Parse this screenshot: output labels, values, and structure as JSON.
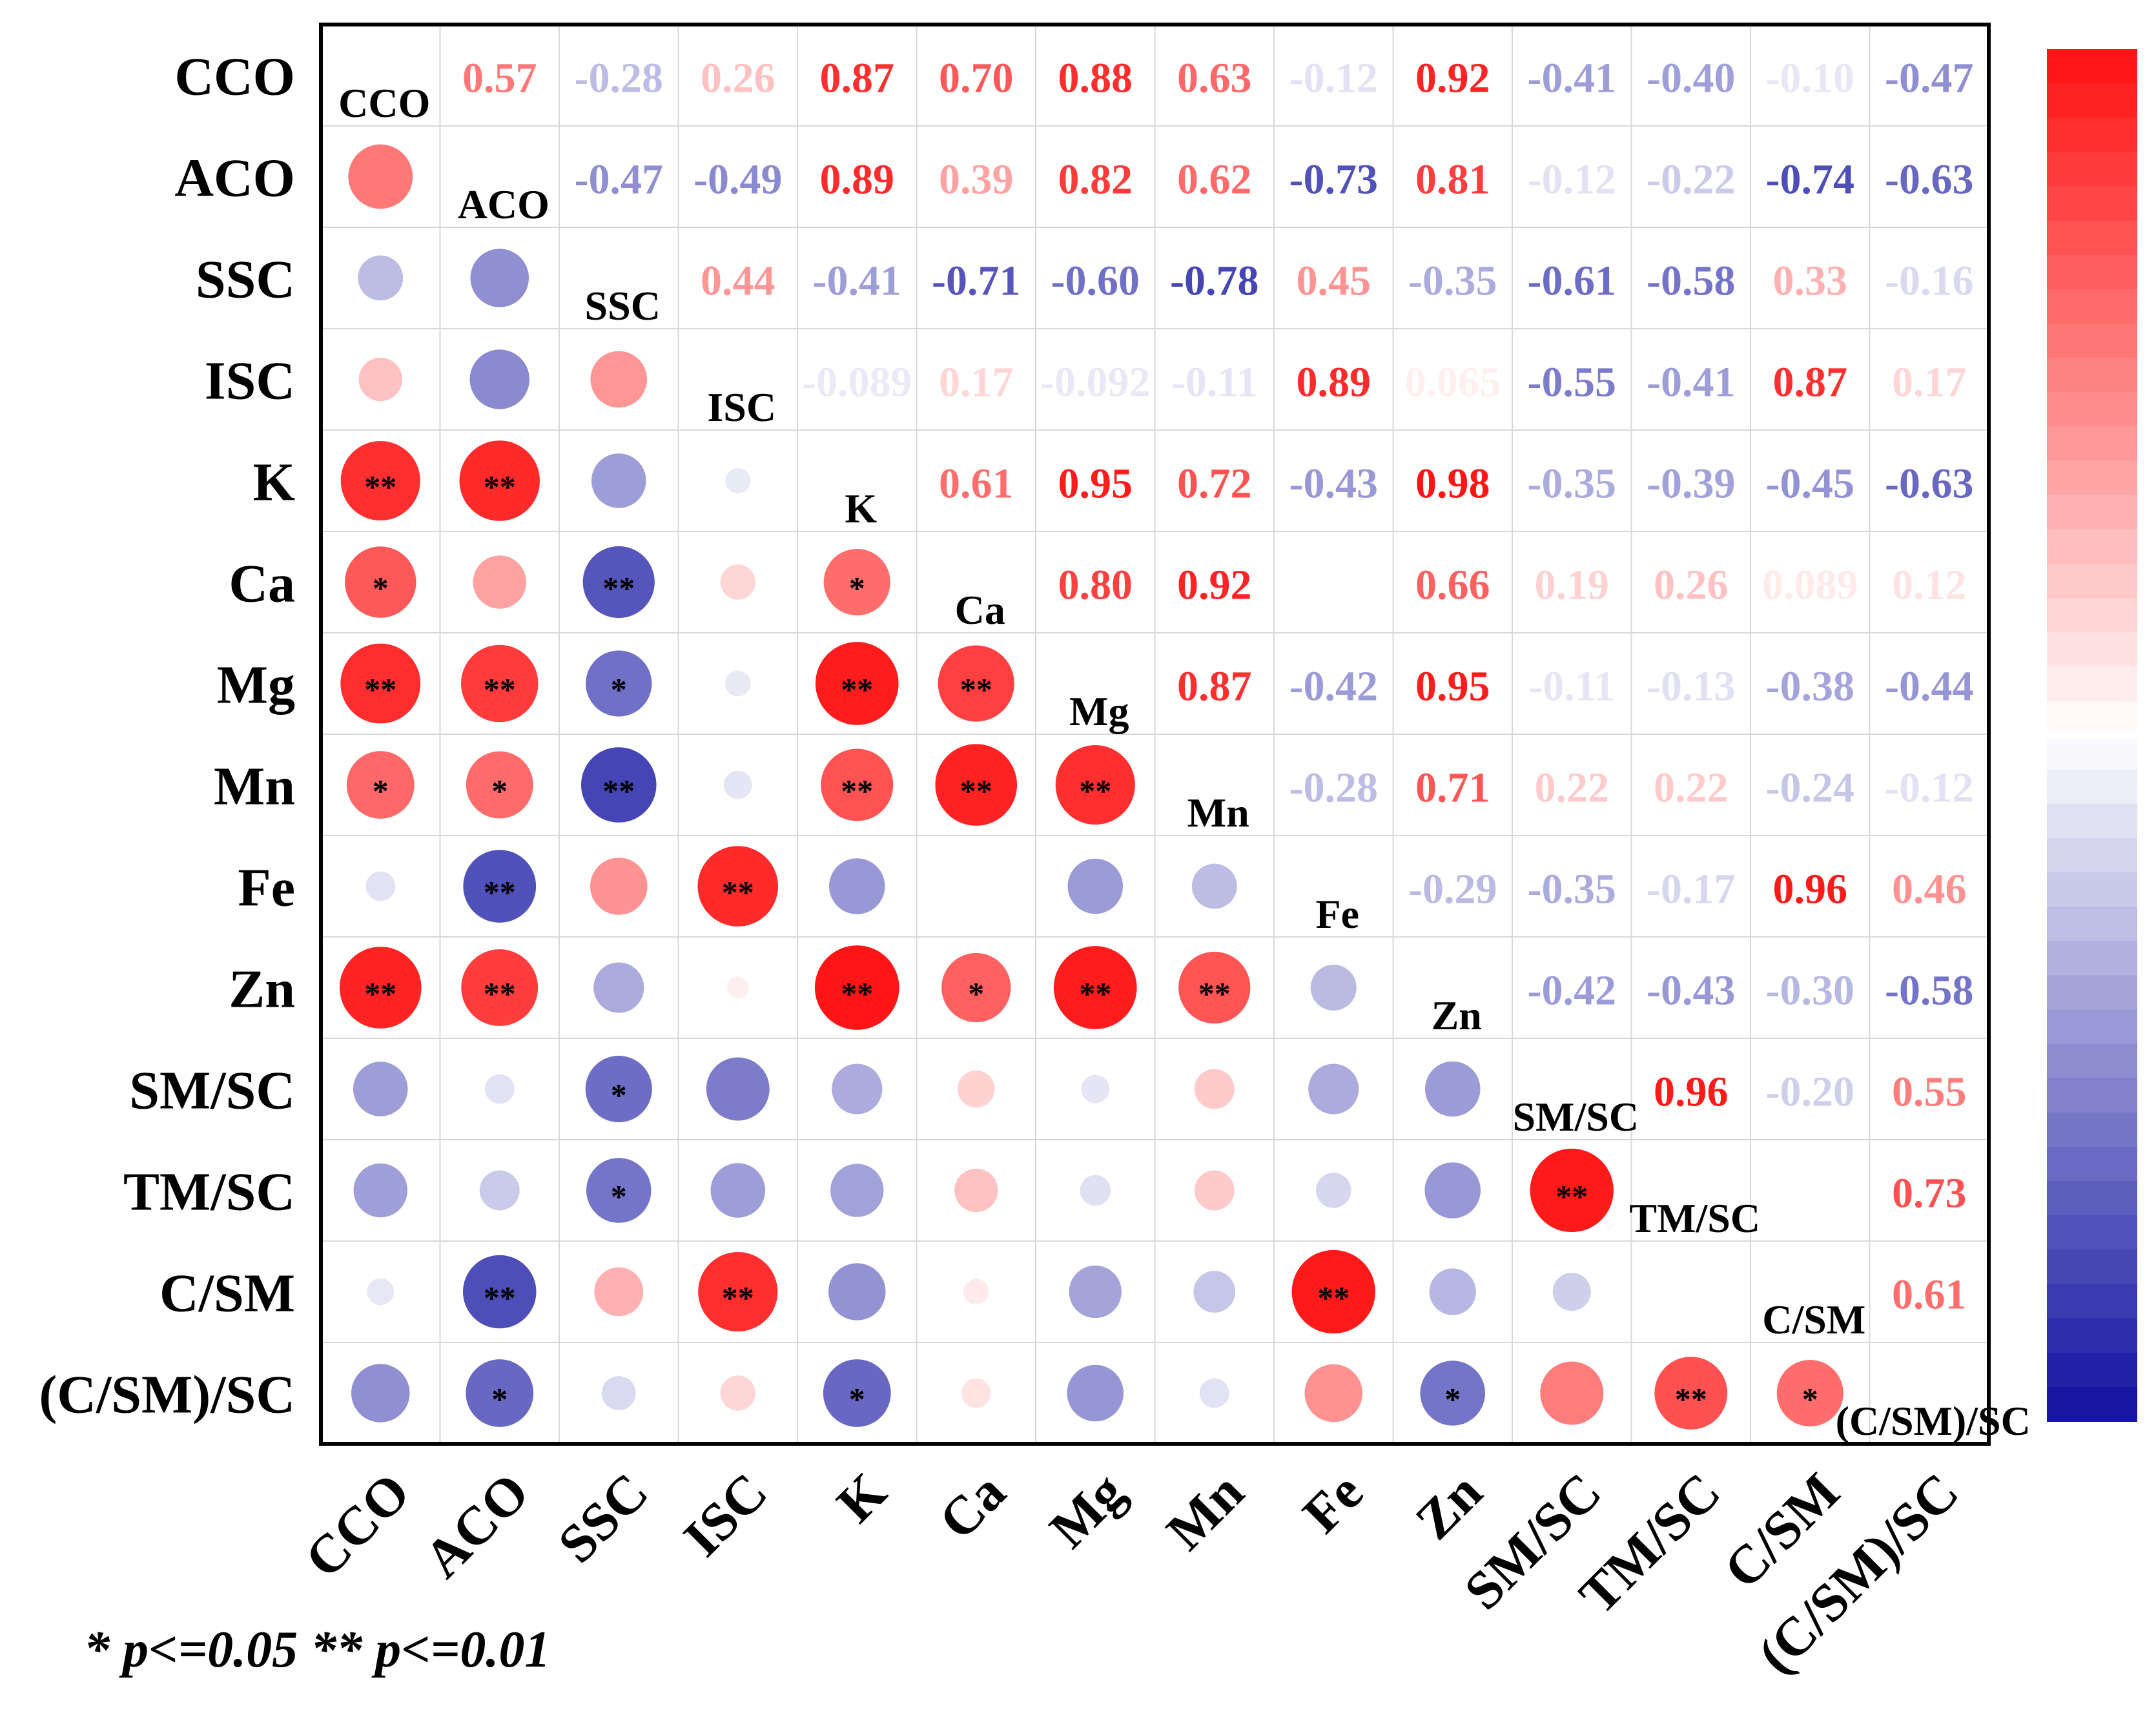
{
  "chart_data": {
    "type": "heatmap",
    "title": "",
    "variables": [
      "CCO",
      "ACO",
      "SSC",
      "ISC",
      "K",
      "Ca",
      "Mg",
      "Mn",
      "Fe",
      "Zn",
      "SM/SC",
      "TM/SC",
      "C/SM",
      "(C/SM)/SC"
    ],
    "upper_values_shown": [
      [
        null,
        "0.57",
        "-0.28",
        "0.26",
        "0.87",
        "0.70",
        "0.88",
        "0.63",
        "-0.12",
        "0.92",
        "-0.41",
        "-0.40",
        "-0.10",
        "-0.47"
      ],
      [
        null,
        null,
        "-0.47",
        "-0.49",
        "0.89",
        "0.39",
        "0.82",
        "0.62",
        "-0.73",
        "0.81",
        "-0.12",
        "-0.22",
        "-0.74",
        "-0.63"
      ],
      [
        null,
        null,
        null,
        "0.44",
        "-0.41",
        "-0.71",
        "-0.60",
        "-0.78",
        "0.45",
        "-0.35",
        "-0.61",
        "-0.58",
        "0.33",
        "-0.16"
      ],
      [
        null,
        null,
        null,
        null,
        "-0.089",
        "0.17",
        "-0.092",
        "-0.11",
        "0.89",
        "0.065",
        "-0.55",
        "-0.41",
        "0.87",
        "0.17"
      ],
      [
        null,
        null,
        null,
        null,
        null,
        "0.61",
        "0.95",
        "0.72",
        "-0.43",
        "0.98",
        "-0.35",
        "-0.39",
        "-0.45",
        "-0.63"
      ],
      [
        null,
        null,
        null,
        null,
        null,
        null,
        "0.80",
        "0.92",
        null,
        "0.66",
        "0.19",
        "0.26",
        "0.089",
        "0.12"
      ],
      [
        null,
        null,
        null,
        null,
        null,
        null,
        null,
        "0.87",
        "-0.42",
        "0.95",
        "-0.11",
        "-0.13",
        "-0.38",
        "-0.44"
      ],
      [
        null,
        null,
        null,
        null,
        null,
        null,
        null,
        null,
        "-0.28",
        "0.71",
        "0.22",
        "0.22",
        "-0.24",
        "-0.12"
      ],
      [
        null,
        null,
        null,
        null,
        null,
        null,
        null,
        null,
        null,
        "-0.29",
        "-0.35",
        "-0.17",
        "0.96",
        "0.46"
      ],
      [
        null,
        null,
        null,
        null,
        null,
        null,
        null,
        null,
        null,
        null,
        "-0.42",
        "-0.43",
        "-0.30",
        "-0.58"
      ],
      [
        null,
        null,
        null,
        null,
        null,
        null,
        null,
        null,
        null,
        null,
        null,
        "0.96",
        "-0.20",
        "0.55"
      ],
      [
        null,
        null,
        null,
        null,
        null,
        null,
        null,
        null,
        null,
        null,
        null,
        null,
        null,
        "0.73"
      ],
      [
        null,
        null,
        null,
        null,
        null,
        null,
        null,
        null,
        null,
        null,
        null,
        null,
        null,
        "0.61"
      ],
      [
        null,
        null,
        null,
        null,
        null,
        null,
        null,
        null,
        null,
        null,
        null,
        null,
        null,
        null
      ]
    ],
    "circle_values": {
      "0": [
        0.57,
        -0.28,
        0.26,
        0.87,
        0.7,
        0.88,
        0.63,
        -0.12,
        0.92,
        -0.41,
        -0.4,
        -0.1,
        -0.47
      ],
      "1": [
        -0.47,
        -0.49,
        0.89,
        0.39,
        0.82,
        0.62,
        -0.73,
        0.81,
        -0.12,
        -0.22,
        -0.74,
        -0.63
      ],
      "2": [
        0.44,
        -0.41,
        -0.71,
        -0.6,
        -0.78,
        0.45,
        -0.35,
        -0.61,
        -0.58,
        0.33,
        -0.16
      ],
      "3": [
        -0.089,
        0.17,
        -0.092,
        -0.11,
        0.89,
        0.065,
        -0.55,
        -0.41,
        0.87,
        0.17
      ],
      "4": [
        0.61,
        0.95,
        0.72,
        -0.43,
        0.98,
        -0.35,
        -0.39,
        -0.45,
        -0.63
      ],
      "5": [
        0.8,
        0.92,
        null,
        0.66,
        0.19,
        0.26,
        0.089,
        0.12
      ],
      "6": [
        0.87,
        -0.42,
        0.95,
        -0.11,
        -0.13,
        -0.38,
        -0.44
      ],
      "7": [
        -0.28,
        0.71,
        0.22,
        0.22,
        -0.24,
        -0.12
      ],
      "8": [
        -0.29,
        -0.35,
        -0.17,
        0.96,
        0.46
      ],
      "9": [
        -0.42,
        -0.43,
        -0.3,
        -0.58
      ],
      "10": [
        0.96,
        -0.2,
        0.55
      ],
      "11": [
        null,
        0.73
      ],
      "12": [
        0.61
      ]
    },
    "significance": [
      [
        null,
        null,
        null,
        null,
        null,
        null,
        null,
        null,
        null,
        null,
        null,
        null,
        null,
        null
      ],
      [
        null,
        null,
        null,
        null,
        null,
        null,
        null,
        null,
        null,
        null,
        null,
        null,
        null,
        null
      ],
      [
        null,
        null,
        null,
        null,
        null,
        null,
        null,
        null,
        null,
        null,
        null,
        null,
        null,
        null
      ],
      [
        null,
        null,
        null,
        null,
        null,
        null,
        null,
        null,
        null,
        null,
        null,
        null,
        null,
        null
      ],
      [
        "**",
        "**",
        null,
        null,
        null,
        null,
        null,
        null,
        null,
        null,
        null,
        null,
        null,
        null
      ],
      [
        "*",
        null,
        "**",
        null,
        "*",
        null,
        null,
        null,
        null,
        null,
        null,
        null,
        null,
        null
      ],
      [
        "**",
        "**",
        "*",
        null,
        "**",
        "**",
        null,
        null,
        null,
        null,
        null,
        null,
        null,
        null
      ],
      [
        "*",
        "*",
        "**",
        null,
        "**",
        "**",
        "**",
        null,
        null,
        null,
        null,
        null,
        null,
        null
      ],
      [
        null,
        "**",
        null,
        "**",
        null,
        null,
        null,
        null,
        null,
        null,
        null,
        null,
        null,
        null
      ],
      [
        "**",
        "**",
        null,
        null,
        "**",
        "*",
        "**",
        "**",
        null,
        null,
        null,
        null,
        null,
        null
      ],
      [
        null,
        null,
        "*",
        null,
        null,
        null,
        null,
        null,
        null,
        null,
        null,
        null,
        null,
        null
      ],
      [
        null,
        null,
        "*",
        null,
        null,
        null,
        null,
        null,
        null,
        null,
        "**",
        null,
        null,
        null
      ],
      [
        null,
        "**",
        null,
        "**",
        null,
        null,
        null,
        null,
        "**",
        null,
        null,
        null,
        null,
        null
      ],
      [
        null,
        "*",
        null,
        null,
        "*",
        null,
        null,
        null,
        null,
        "*",
        null,
        "**",
        "*",
        null
      ]
    ],
    "value_range": [
      -1,
      1
    ],
    "colormap": {
      "negative": "#1010a0",
      "zero": "#ffffff",
      "positive": "#ff1010"
    },
    "significance_note": "* p<=0.05   ** p<=0.01",
    "legend": "right"
  }
}
